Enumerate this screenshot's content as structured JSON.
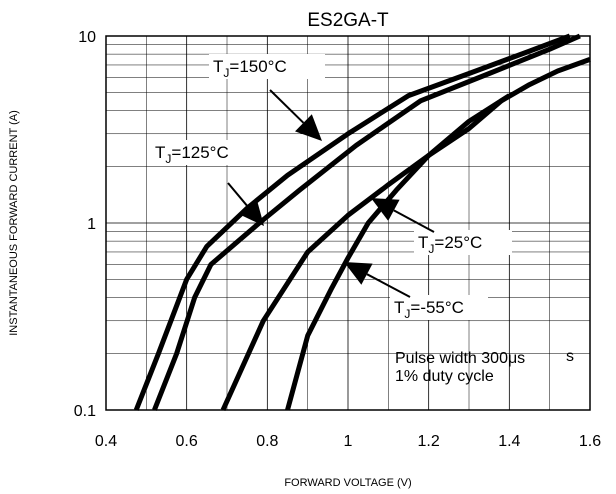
{
  "chart_data": {
    "type": "line",
    "title": "ES2GA-T",
    "xlabel": "FORWARD VOLTAGE (V)",
    "ylabel": "INSTANTANEOUS FORWARD CURRENT (A)",
    "xlim": [
      0.4,
      1.6
    ],
    "ylim": [
      0.1,
      10
    ],
    "yscale": "log",
    "grid": true,
    "x_ticks": [
      "0.4",
      "0.6",
      "0.8",
      "1",
      "1.2",
      "1.4",
      "1.6"
    ],
    "y_ticks": [
      "0.1",
      "1",
      "10"
    ],
    "series": [
      {
        "name": "TJ=150°C",
        "x": [
          0.475,
          0.53,
          0.6,
          0.65,
          0.75,
          0.85,
          1.0,
          1.15,
          1.3,
          1.45,
          1.55
        ],
        "y": [
          0.1,
          0.2,
          0.5,
          0.75,
          1.2,
          1.8,
          3.0,
          4.8,
          6.3,
          8.3,
          10.0
        ]
      },
      {
        "name": "TJ=125°C",
        "x": [
          0.52,
          0.575,
          0.62,
          0.66,
          0.78,
          0.88,
          1.02,
          1.18,
          1.35,
          1.5,
          1.575
        ],
        "y": [
          0.1,
          0.2,
          0.4,
          0.6,
          1.0,
          1.5,
          2.6,
          4.5,
          6.3,
          8.5,
          10.0
        ]
      },
      {
        "name": "TJ=25°C",
        "x": [
          0.69,
          0.79,
          0.9,
          1.0,
          1.1,
          1.2,
          1.3,
          1.38,
          1.45,
          1.52,
          1.6
        ],
        "y": [
          0.1,
          0.3,
          0.7,
          1.1,
          1.6,
          2.3,
          3.2,
          4.5,
          5.5,
          6.5,
          7.5
        ]
      },
      {
        "name": "TJ=-55°C",
        "x": [
          0.85,
          0.9,
          0.96,
          1.0,
          1.05,
          1.12,
          1.2,
          1.3,
          1.4
        ],
        "y": [
          0.1,
          0.25,
          0.45,
          0.65,
          1.0,
          1.5,
          2.3,
          3.5,
          4.8
        ]
      }
    ],
    "annotations": [
      {
        "subscript_base": "T",
        "subscript": "J",
        "rest": "=150°C",
        "series": "TJ=150°C"
      },
      {
        "subscript_base": "T",
        "subscript": "J",
        "rest": "=125°C",
        "series": "TJ=125°C"
      },
      {
        "subscript_base": "T",
        "subscript": "J",
        "rest": "=25°C",
        "series": "TJ=25°C"
      },
      {
        "subscript_base": "T",
        "subscript": "J",
        "rest": "=-55°C",
        "series": "TJ=-55°C"
      }
    ],
    "note": [
      "Pulse width 300μs",
      "1% duty cycle"
    ],
    "note_stray": "s"
  }
}
